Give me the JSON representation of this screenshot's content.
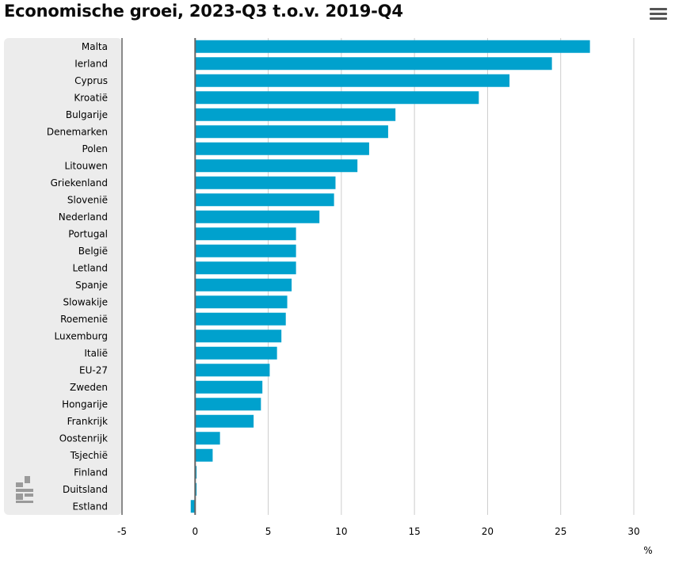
{
  "title": "Economische groei, 2023-Q3 t.o.v. 2019-Q4",
  "menu_icon": "hamburger-menu-icon",
  "logo_icon": "cbs-logo",
  "colors": {
    "bar": "#00a1cd",
    "category_panel": "#ececec",
    "gridline": "#cccccc",
    "zero_line": "#666666",
    "menu_icon": "#555555",
    "logo": "#9a9a9a"
  },
  "chart_data": {
    "type": "bar",
    "orientation": "horizontal",
    "title": "Economische groei, 2023-Q3 t.o.v. 2019-Q4",
    "unit_label": "%",
    "categories": [
      "Malta",
      "Ierland",
      "Cyprus",
      "Kroatië",
      "Bulgarije",
      "Denemarken",
      "Polen",
      "Litouwen",
      "Griekenland",
      "Slovenië",
      "Nederland",
      "Portugal",
      "België",
      "Letland",
      "Spanje",
      "Slowakije",
      "Roemenië",
      "Luxemburg",
      "Italië",
      "EU-27",
      "Zweden",
      "Hongarije",
      "Frankrijk",
      "Oostenrijk",
      "Tsjechië",
      "Finland",
      "Duitsland",
      "Estland"
    ],
    "values": [
      27.0,
      24.4,
      21.5,
      19.4,
      13.7,
      13.2,
      11.9,
      11.1,
      9.6,
      9.5,
      8.5,
      6.9,
      6.9,
      6.9,
      6.6,
      6.3,
      6.2,
      5.9,
      5.6,
      5.1,
      4.6,
      4.5,
      4.0,
      1.7,
      1.2,
      0.1,
      0.1,
      -0.3
    ],
    "xlim": [
      -5,
      30
    ],
    "ticks": [
      -5,
      0,
      5,
      10,
      15,
      20,
      25,
      30
    ],
    "grid": true
  }
}
